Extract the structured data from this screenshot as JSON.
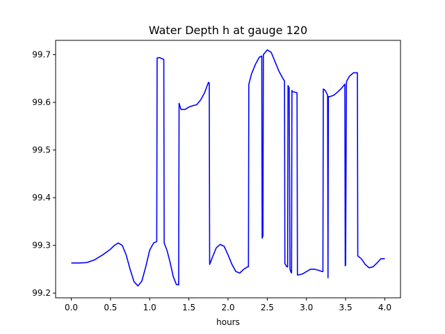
{
  "chart_data": {
    "type": "line",
    "title": "Water Depth h at gauge 120",
    "xlabel": "hours",
    "ylabel": "",
    "xlim": [
      -0.2,
      4.2
    ],
    "ylim": [
      99.19,
      99.73
    ],
    "xticks": [
      0.0,
      0.5,
      1.0,
      1.5,
      2.0,
      2.5,
      3.0,
      3.5,
      4.0
    ],
    "xtick_labels": [
      "0.0",
      "0.5",
      "1.0",
      "1.5",
      "2.0",
      "2.5",
      "3.0",
      "3.5",
      "4.0"
    ],
    "yticks": [
      99.2,
      99.3,
      99.4,
      99.5,
      99.6,
      99.7
    ],
    "ytick_labels": [
      "99.2",
      "99.3",
      "99.4",
      "99.5",
      "99.6",
      "99.7"
    ],
    "grid": false,
    "legend": "none",
    "series": [
      {
        "color": "#0000ff",
        "x": [
          0.0,
          0.1,
          0.2,
          0.3,
          0.4,
          0.5,
          0.55,
          0.6,
          0.65,
          0.7,
          0.75,
          0.8,
          0.85,
          0.9,
          0.95,
          1.0,
          1.05,
          1.09,
          1.095,
          1.12,
          1.15,
          1.18,
          1.185,
          1.22,
          1.26,
          1.3,
          1.34,
          1.37,
          1.375,
          1.4,
          1.45,
          1.5,
          1.55,
          1.6,
          1.65,
          1.7,
          1.75,
          1.76,
          1.765,
          1.8,
          1.85,
          1.9,
          1.95,
          2.0,
          2.05,
          2.1,
          2.15,
          2.2,
          2.25,
          2.26,
          2.265,
          2.3,
          2.35,
          2.4,
          2.43,
          2.435,
          2.445,
          2.45,
          2.5,
          2.55,
          2.6,
          2.65,
          2.7,
          2.72,
          2.725,
          2.75,
          2.76,
          2.765,
          2.78,
          2.79,
          2.8,
          2.81,
          2.815,
          2.82,
          2.84,
          2.88,
          2.885,
          2.895,
          2.95,
          3.0,
          3.05,
          3.1,
          3.15,
          3.2,
          3.21,
          3.215,
          3.24,
          3.27,
          3.275,
          3.28,
          3.3,
          3.35,
          3.4,
          3.45,
          3.49,
          3.495,
          3.5,
          3.51,
          3.515,
          3.55,
          3.6,
          3.65,
          3.655,
          3.7,
          3.75,
          3.8,
          3.85,
          3.9,
          3.95,
          4.0
        ],
        "y": [
          99.263,
          99.263,
          99.264,
          99.27,
          99.28,
          99.292,
          99.3,
          99.305,
          99.3,
          99.28,
          99.25,
          99.224,
          99.215,
          99.225,
          99.255,
          99.29,
          99.305,
          99.308,
          99.693,
          99.694,
          99.692,
          99.69,
          99.305,
          99.29,
          99.265,
          99.235,
          99.218,
          99.217,
          99.598,
          99.585,
          99.585,
          99.59,
          99.593,
          99.595,
          99.605,
          99.62,
          99.642,
          99.64,
          99.26,
          99.275,
          99.295,
          99.302,
          99.298,
          99.28,
          99.26,
          99.245,
          99.242,
          99.25,
          99.255,
          99.255,
          99.638,
          99.66,
          99.68,
          99.695,
          99.697,
          99.315,
          99.32,
          99.7,
          99.71,
          99.705,
          99.685,
          99.665,
          99.65,
          99.645,
          99.262,
          99.255,
          99.255,
          99.635,
          99.63,
          99.25,
          99.245,
          99.242,
          99.625,
          99.622,
          99.622,
          99.62,
          99.238,
          99.238,
          99.24,
          99.245,
          99.25,
          99.25,
          99.248,
          99.245,
          99.245,
          99.628,
          99.625,
          99.615,
          99.232,
          99.612,
          99.612,
          99.615,
          99.622,
          99.63,
          99.638,
          99.257,
          99.26,
          99.64,
          99.645,
          99.655,
          99.662,
          99.662,
          99.278,
          99.272,
          99.26,
          99.253,
          99.255,
          99.263,
          99.272,
          99.272
        ]
      }
    ]
  }
}
